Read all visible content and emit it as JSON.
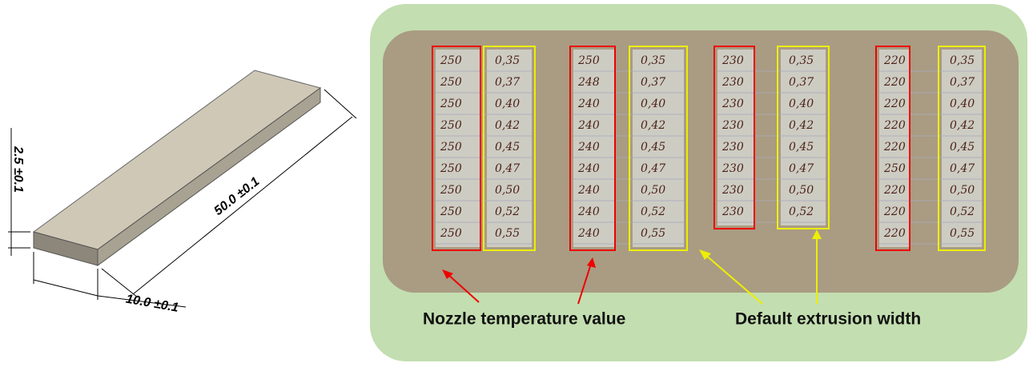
{
  "drawing": {
    "thickness": "2.5 ±0.1",
    "length": "50.0 ±0.1",
    "width": "10.0 ±0.1"
  },
  "photo": {
    "groups": [
      {
        "temperatures": [
          "250",
          "250",
          "250",
          "250",
          "250",
          "250",
          "250",
          "250",
          "250"
        ],
        "widths": [
          "0,35",
          "0,37",
          "0,40",
          "0,42",
          "0,45",
          "0,47",
          "0,50",
          "0,52",
          "0,55"
        ]
      },
      {
        "temperatures": [
          "250",
          "248",
          "240",
          "240",
          "240",
          "240",
          "240",
          "240",
          "240"
        ],
        "widths": [
          "0,35",
          "0,37",
          "0,40",
          "0,42",
          "0,45",
          "0,47",
          "0,50",
          "0,52",
          "0,55"
        ]
      },
      {
        "temperatures": [
          "230",
          "230",
          "230",
          "230",
          "230",
          "230",
          "230",
          "230"
        ],
        "widths": [
          "0,35",
          "0,37",
          "0,40",
          "0,42",
          "0,45",
          "0,47",
          "0,50",
          "0,52"
        ]
      },
      {
        "temperatures": [
          "220",
          "220",
          "220",
          "220",
          "220",
          "250",
          "220",
          "220",
          "220"
        ],
        "widths": [
          "0,35",
          "0,37",
          "0,40",
          "0,42",
          "0,45",
          "0,47",
          "0,50",
          "0,52",
          "0,55"
        ]
      }
    ]
  },
  "annotations": {
    "temperature": "Nozzle temperature value",
    "width": "Default extrusion width"
  }
}
